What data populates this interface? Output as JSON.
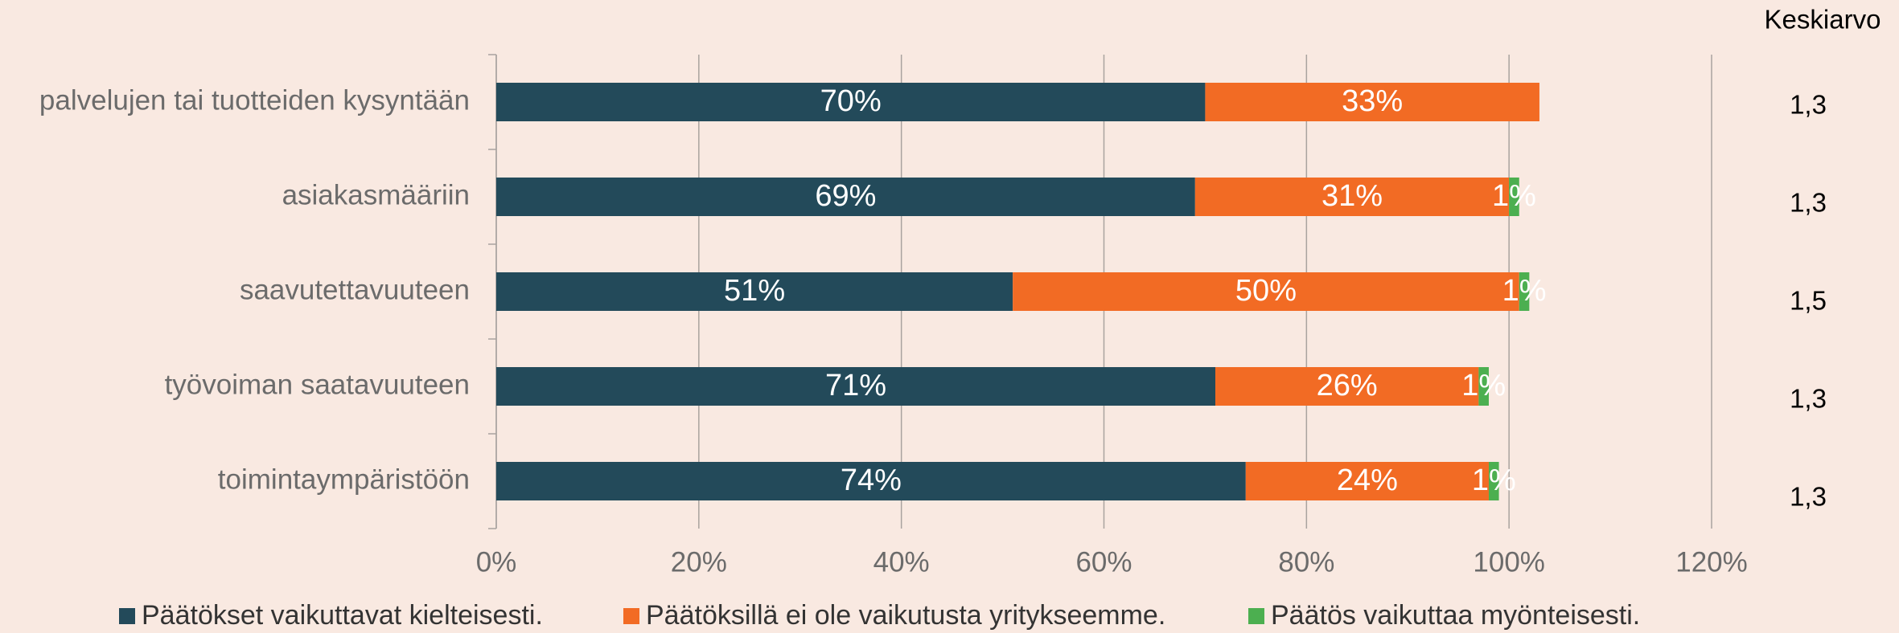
{
  "chart_data": {
    "type": "stacked-bar-horizontal",
    "categories": [
      "palvelujen tai tuotteiden kysyntään",
      "asiakasmääriin",
      "saavutettavuuteen",
      "työvoiman saatavuuteen",
      "toimintaympäristöön"
    ],
    "series": [
      {
        "name": "Päätökset vaikuttavat kielteisesti.",
        "color": "#234a5a",
        "values": [
          70,
          69,
          51,
          71,
          74
        ],
        "value_labels": [
          "70%",
          "69%",
          "51%",
          "71%",
          "74%"
        ]
      },
      {
        "name": "Päätöksillä ei ole vaikutusta yritykseemme.",
        "color": "#f26b24",
        "values": [
          33,
          31,
          50,
          26,
          24
        ],
        "value_labels": [
          "33%",
          "31%",
          "50%",
          "26%",
          "24%"
        ]
      },
      {
        "name": "Päätös vaikuttaa myönteisesti.",
        "color": "#4caf50",
        "values": [
          null,
          1,
          1,
          1,
          1
        ],
        "value_labels": [
          null,
          "1%",
          "1%",
          "1%",
          "1%"
        ]
      }
    ],
    "xlim": [
      0,
      120
    ],
    "xticks": [
      {
        "value": 0,
        "label": "0%"
      },
      {
        "value": 20,
        "label": "20%"
      },
      {
        "value": 40,
        "label": "40%"
      },
      {
        "value": 60,
        "label": "60%"
      },
      {
        "value": 80,
        "label": "80%"
      },
      {
        "value": 100,
        "label": "100%"
      },
      {
        "value": 120,
        "label": "120%"
      }
    ],
    "grid": true,
    "legend": "bottom",
    "side_column": {
      "title": "Keskiarvo",
      "values": [
        "1,3",
        "1,3",
        "1,5",
        "1,3",
        "1,3"
      ]
    }
  }
}
